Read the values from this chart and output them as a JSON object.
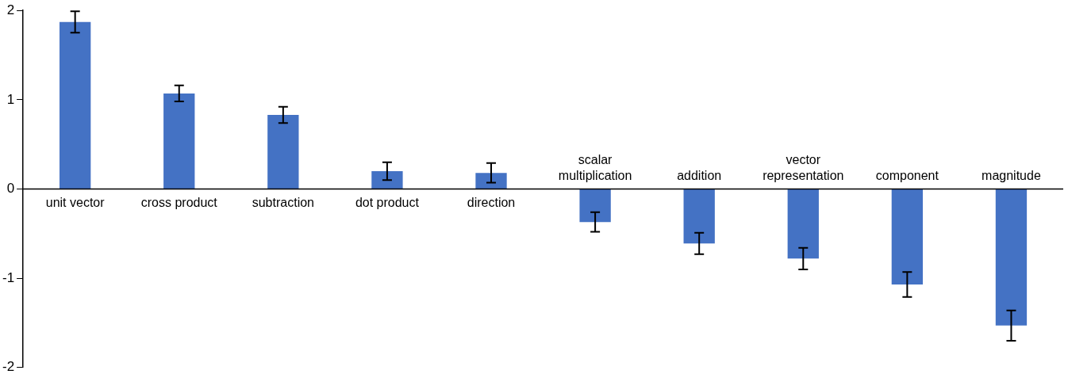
{
  "chart_data": {
    "type": "bar",
    "categories": [
      "unit vector",
      "cross product",
      "subtraction",
      "dot product",
      "direction",
      "scalar multiplication",
      "addition",
      "vector representation",
      "component",
      "magnitude"
    ],
    "values": [
      1.87,
      1.07,
      0.83,
      0.2,
      0.18,
      -0.37,
      -0.61,
      -0.78,
      -1.07,
      -1.53
    ],
    "errors": [
      0.12,
      0.09,
      0.09,
      0.1,
      0.11,
      0.11,
      0.12,
      0.12,
      0.14,
      0.17
    ],
    "color": "#4472c4",
    "ylim": [
      -2,
      2
    ],
    "yticks": [
      -2,
      -1,
      0,
      1,
      2
    ],
    "grid": false,
    "legend": false
  }
}
